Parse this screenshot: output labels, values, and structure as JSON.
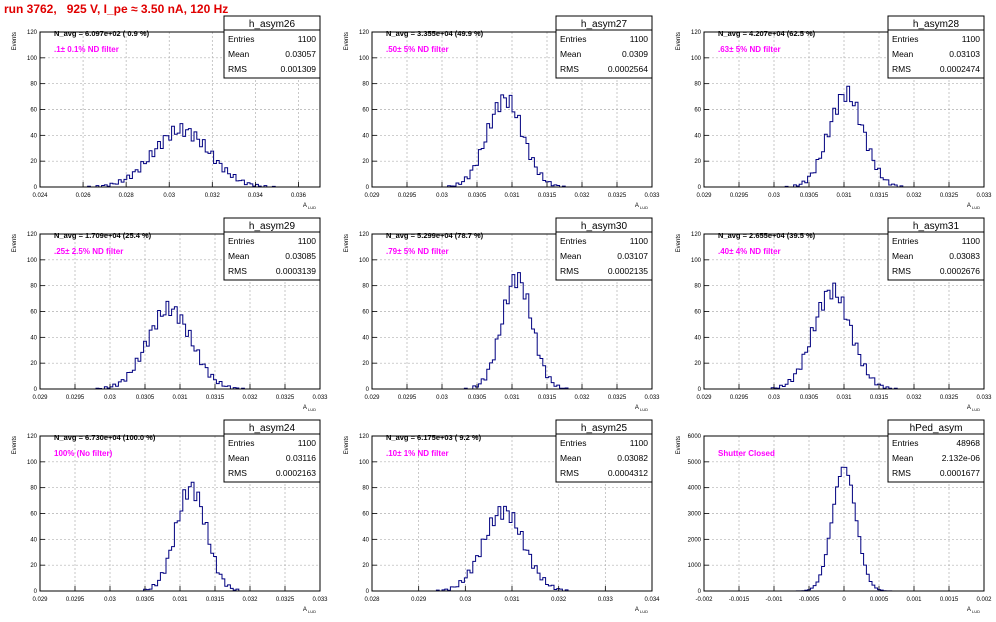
{
  "header": {
    "title": "run 3762,   925 V, I_pe ≈ 3.50 nA, 120 Hz"
  },
  "colors": {
    "hist": "#000080",
    "title": "#e00000",
    "label": "#ff00ff",
    "grid": "#b0b0b0",
    "frame": "#000000"
  },
  "chart_data": [
    {
      "type": "histogram",
      "name": "h_asym26",
      "navg": "N_avg = 6.097e+02 ( 0.9 %)",
      "label": ".1± 0.1% ND filter",
      "stats": {
        "entries": "1100",
        "mean": "0.03057",
        "rms": "0.001309"
      },
      "ylabel": "Events",
      "xlabel": "A_LUD",
      "xlim": [
        0.024,
        0.037
      ],
      "ylim": [
        0,
        120
      ],
      "xticks": [
        "0.024",
        "0.026",
        "0.028",
        "0.03",
        "0.032",
        "0.034",
        "0.036"
      ],
      "yticks": [
        "0",
        "20",
        "40",
        "60",
        "80",
        "100",
        "120"
      ],
      "xtickvals": [
        0.024,
        0.026,
        0.028,
        0.03,
        0.032,
        0.034,
        0.036
      ],
      "ytickvals": [
        0,
        20,
        40,
        60,
        80,
        100,
        120
      ],
      "dist": {
        "mean": 0.03057,
        "sigma": 0.00131,
        "peak": 44
      }
    },
    {
      "type": "histogram",
      "name": "h_asym27",
      "navg": "N_avg = 3.355e+04 (49.9 %)",
      "label": ".50± 5% ND filter",
      "stats": {
        "entries": "1100",
        "mean": "0.0309",
        "rms": "0.0002564"
      },
      "ylabel": "Events",
      "xlabel": "A_LUD",
      "xlim": [
        0.029,
        0.033
      ],
      "ylim": [
        0,
        120
      ],
      "xticks": [
        "0.029",
        "0.0295",
        "0.03",
        "0.0305",
        "0.031",
        "0.0315",
        "0.032",
        "0.0325",
        "0.033"
      ],
      "yticks": [
        "0",
        "20",
        "40",
        "60",
        "80",
        "100",
        "120"
      ],
      "xtickvals": [
        0.029,
        0.0295,
        0.03,
        0.0305,
        0.031,
        0.0315,
        0.032,
        0.0325,
        0.033
      ],
      "ytickvals": [
        0,
        20,
        40,
        60,
        80,
        100,
        120
      ],
      "dist": {
        "mean": 0.0309,
        "sigma": 0.000256,
        "peak": 68
      }
    },
    {
      "type": "histogram",
      "name": "h_asym28",
      "navg": "N_avg = 4.207e+04 (62.5 %)",
      "label": ".63± 5% ND filter",
      "stats": {
        "entries": "1100",
        "mean": "0.03103",
        "rms": "0.0002474"
      },
      "ylabel": "Events",
      "xlabel": "A_LUD",
      "xlim": [
        0.029,
        0.033
      ],
      "ylim": [
        0,
        120
      ],
      "xticks": [
        "0.029",
        "0.0295",
        "0.03",
        "0.0305",
        "0.031",
        "0.0315",
        "0.032",
        "0.0325",
        "0.033"
      ],
      "yticks": [
        "0",
        "20",
        "40",
        "60",
        "80",
        "100",
        "120"
      ],
      "xtickvals": [
        0.029,
        0.0295,
        0.03,
        0.0305,
        0.031,
        0.0315,
        0.032,
        0.0325,
        0.033
      ],
      "ytickvals": [
        0,
        20,
        40,
        60,
        80,
        100,
        120
      ],
      "dist": {
        "mean": 0.03103,
        "sigma": 0.000247,
        "peak": 72
      }
    },
    {
      "type": "histogram",
      "name": "h_asym29",
      "navg": "N_avg = 1.709e+04 (25.4 %)",
      "label": ".25± 2.5% ND filter",
      "stats": {
        "entries": "1100",
        "mean": "0.03085",
        "rms": "0.0003139"
      },
      "ylabel": "Events",
      "xlabel": "A_LUD",
      "xlim": [
        0.029,
        0.033
      ],
      "ylim": [
        0,
        120
      ],
      "xticks": [
        "0.029",
        "0.0295",
        "0.03",
        "0.0305",
        "0.031",
        "0.0315",
        "0.032",
        "0.0325",
        "0.033"
      ],
      "yticks": [
        "0",
        "20",
        "40",
        "60",
        "80",
        "100",
        "120"
      ],
      "xtickvals": [
        0.029,
        0.0295,
        0.03,
        0.0305,
        0.031,
        0.0315,
        0.032,
        0.0325,
        0.033
      ],
      "ytickvals": [
        0,
        20,
        40,
        60,
        80,
        100,
        120
      ],
      "dist": {
        "mean": 0.03085,
        "sigma": 0.000314,
        "peak": 62
      }
    },
    {
      "type": "histogram",
      "name": "h_asym30",
      "navg": "N_avg = 5.299e+04 (78.7 %)",
      "label": ".79± 5% ND filter",
      "stats": {
        "entries": "1100",
        "mean": "0.03107",
        "rms": "0.0002135"
      },
      "ylabel": "Events",
      "xlabel": "A_LUD",
      "xlim": [
        0.029,
        0.033
      ],
      "ylim": [
        0,
        120
      ],
      "xticks": [
        "0.029",
        "0.0295",
        "0.03",
        "0.0305",
        "0.031",
        "0.0315",
        "0.032",
        "0.0325",
        "0.033"
      ],
      "yticks": [
        "0",
        "20",
        "40",
        "60",
        "80",
        "100",
        "120"
      ],
      "xtickvals": [
        0.029,
        0.0295,
        0.03,
        0.0305,
        0.031,
        0.0315,
        0.032,
        0.0325,
        0.033
      ],
      "ytickvals": [
        0,
        20,
        40,
        60,
        80,
        100,
        120
      ],
      "dist": {
        "mean": 0.03107,
        "sigma": 0.000214,
        "peak": 86
      }
    },
    {
      "type": "histogram",
      "name": "h_asym31",
      "navg": "N_avg = 2.655e+04 (39.5 %)",
      "label": ".40± 4% ND filter",
      "stats": {
        "entries": "1100",
        "mean": "0.03083",
        "rms": "0.0002676"
      },
      "ylabel": "Events",
      "xlabel": "A_LUD",
      "xlim": [
        0.029,
        0.033
      ],
      "ylim": [
        0,
        120
      ],
      "xticks": [
        "0.029",
        "0.0295",
        "0.03",
        "0.0305",
        "0.031",
        "0.0315",
        "0.032",
        "0.0325",
        "0.033"
      ],
      "yticks": [
        "0",
        "20",
        "40",
        "60",
        "80",
        "100",
        "120"
      ],
      "xtickvals": [
        0.029,
        0.0295,
        0.03,
        0.0305,
        0.031,
        0.0315,
        0.032,
        0.0325,
        0.033
      ],
      "ytickvals": [
        0,
        20,
        40,
        60,
        80,
        100,
        120
      ],
      "dist": {
        "mean": 0.03083,
        "sigma": 0.000268,
        "peak": 76
      }
    },
    {
      "type": "histogram",
      "name": "h_asym24",
      "navg": "N_avg = 6.730e+04 (100.0 %)",
      "label": "100% (No filter)",
      "stats": {
        "entries": "1100",
        "mean": "0.03116",
        "rms": "0.0002163"
      },
      "ylabel": "Events",
      "xlabel": "A_LUD",
      "xlim": [
        0.029,
        0.033
      ],
      "ylim": [
        0,
        120
      ],
      "xticks": [
        "0.029",
        "0.0295",
        "0.03",
        "0.0305",
        "0.031",
        "0.0315",
        "0.032",
        "0.0325",
        "0.033"
      ],
      "yticks": [
        "0",
        "20",
        "40",
        "60",
        "80",
        "100",
        "120"
      ],
      "xtickvals": [
        0.029,
        0.0295,
        0.03,
        0.0305,
        0.031,
        0.0315,
        0.032,
        0.0325,
        0.033
      ],
      "ytickvals": [
        0,
        20,
        40,
        60,
        80,
        100,
        120
      ],
      "dist": {
        "mean": 0.03116,
        "sigma": 0.000216,
        "peak": 80
      }
    },
    {
      "type": "histogram",
      "name": "h_asym25",
      "navg": "N_avg = 6.175e+03 ( 9.2 %)",
      "label": ".10± 1% ND filter",
      "stats": {
        "entries": "1100",
        "mean": "0.03082",
        "rms": "0.0004312"
      },
      "ylabel": "Events",
      "xlabel": "A_LUD",
      "xlim": [
        0.028,
        0.034
      ],
      "ylim": [
        0,
        120
      ],
      "xticks": [
        "0.028",
        "0.029",
        "0.03",
        "0.031",
        "0.032",
        "0.033",
        "0.034"
      ],
      "yticks": [
        "0",
        "20",
        "40",
        "60",
        "80",
        "100",
        "120"
      ],
      "xtickvals": [
        0.028,
        0.029,
        0.03,
        0.031,
        0.032,
        0.033,
        0.034
      ],
      "ytickvals": [
        0,
        20,
        40,
        60,
        80,
        100,
        120
      ],
      "dist": {
        "mean": 0.03082,
        "sigma": 0.000431,
        "peak": 62
      }
    },
    {
      "type": "histogram",
      "name": "hPed_asym",
      "navg": "",
      "label": "Shutter Closed",
      "stats": {
        "entries": "48968",
        "mean": "2.132e-06",
        "rms": "0.0001677"
      },
      "ylabel": "Events",
      "xlabel": "A_LUD",
      "xlim": [
        -0.002,
        0.002
      ],
      "ylim": [
        0,
        6000
      ],
      "xticks": [
        "-0.002",
        "-0.0015",
        "-0.001",
        "-0.0005",
        "0",
        "0.0005",
        "0.001",
        "0.0015",
        "0.002"
      ],
      "yticks": [
        "0",
        "1000",
        "2000",
        "3000",
        "4000",
        "5000",
        "6000"
      ],
      "xtickvals": [
        -0.002,
        -0.0015,
        -0.001,
        -0.0005,
        0,
        0.0005,
        0.001,
        0.0015,
        0.002
      ],
      "ytickvals": [
        0,
        1000,
        2000,
        3000,
        4000,
        5000,
        6000
      ],
      "dist": {
        "mean": 2e-06,
        "sigma": 0.000168,
        "peak": 4800
      }
    }
  ]
}
